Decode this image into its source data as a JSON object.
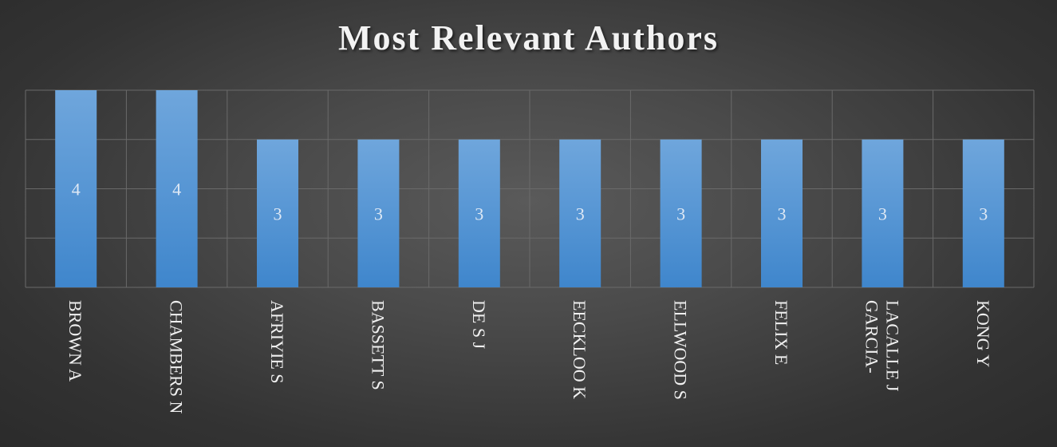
{
  "chart_data": {
    "type": "bar",
    "title": "Most Relevant Authors",
    "xlabel": "",
    "ylabel": "",
    "categories": [
      "BROWN A",
      "CHAMBERS N",
      "AFRIYIE S",
      "BASSETT S",
      "DE S J",
      "EECKLOO K",
      "ELLWOOD S",
      "FELIX E",
      "GARCIA-LACALLE J",
      "KONG Y"
    ],
    "category_lines": [
      [
        "BROWN A"
      ],
      [
        "CHAMBERS N"
      ],
      [
        "AFRIYIE S"
      ],
      [
        "BASSETT S"
      ],
      [
        "DE S J"
      ],
      [
        "EECKLOO K"
      ],
      [
        "ELLWOOD S"
      ],
      [
        "FELIX E"
      ],
      [
        "GARCIA-",
        "LACALLE J"
      ],
      [
        "KONG Y"
      ]
    ],
    "values": [
      4,
      4,
      3,
      3,
      3,
      3,
      3,
      3,
      3,
      3
    ],
    "ylim": [
      0,
      4
    ],
    "grid": true,
    "legend": "none",
    "colors": {
      "bar_top": "#6fa6dc",
      "bar_bottom": "#3f86cc",
      "grid": "#6a6a6a",
      "label": "#f0f0f0"
    }
  }
}
